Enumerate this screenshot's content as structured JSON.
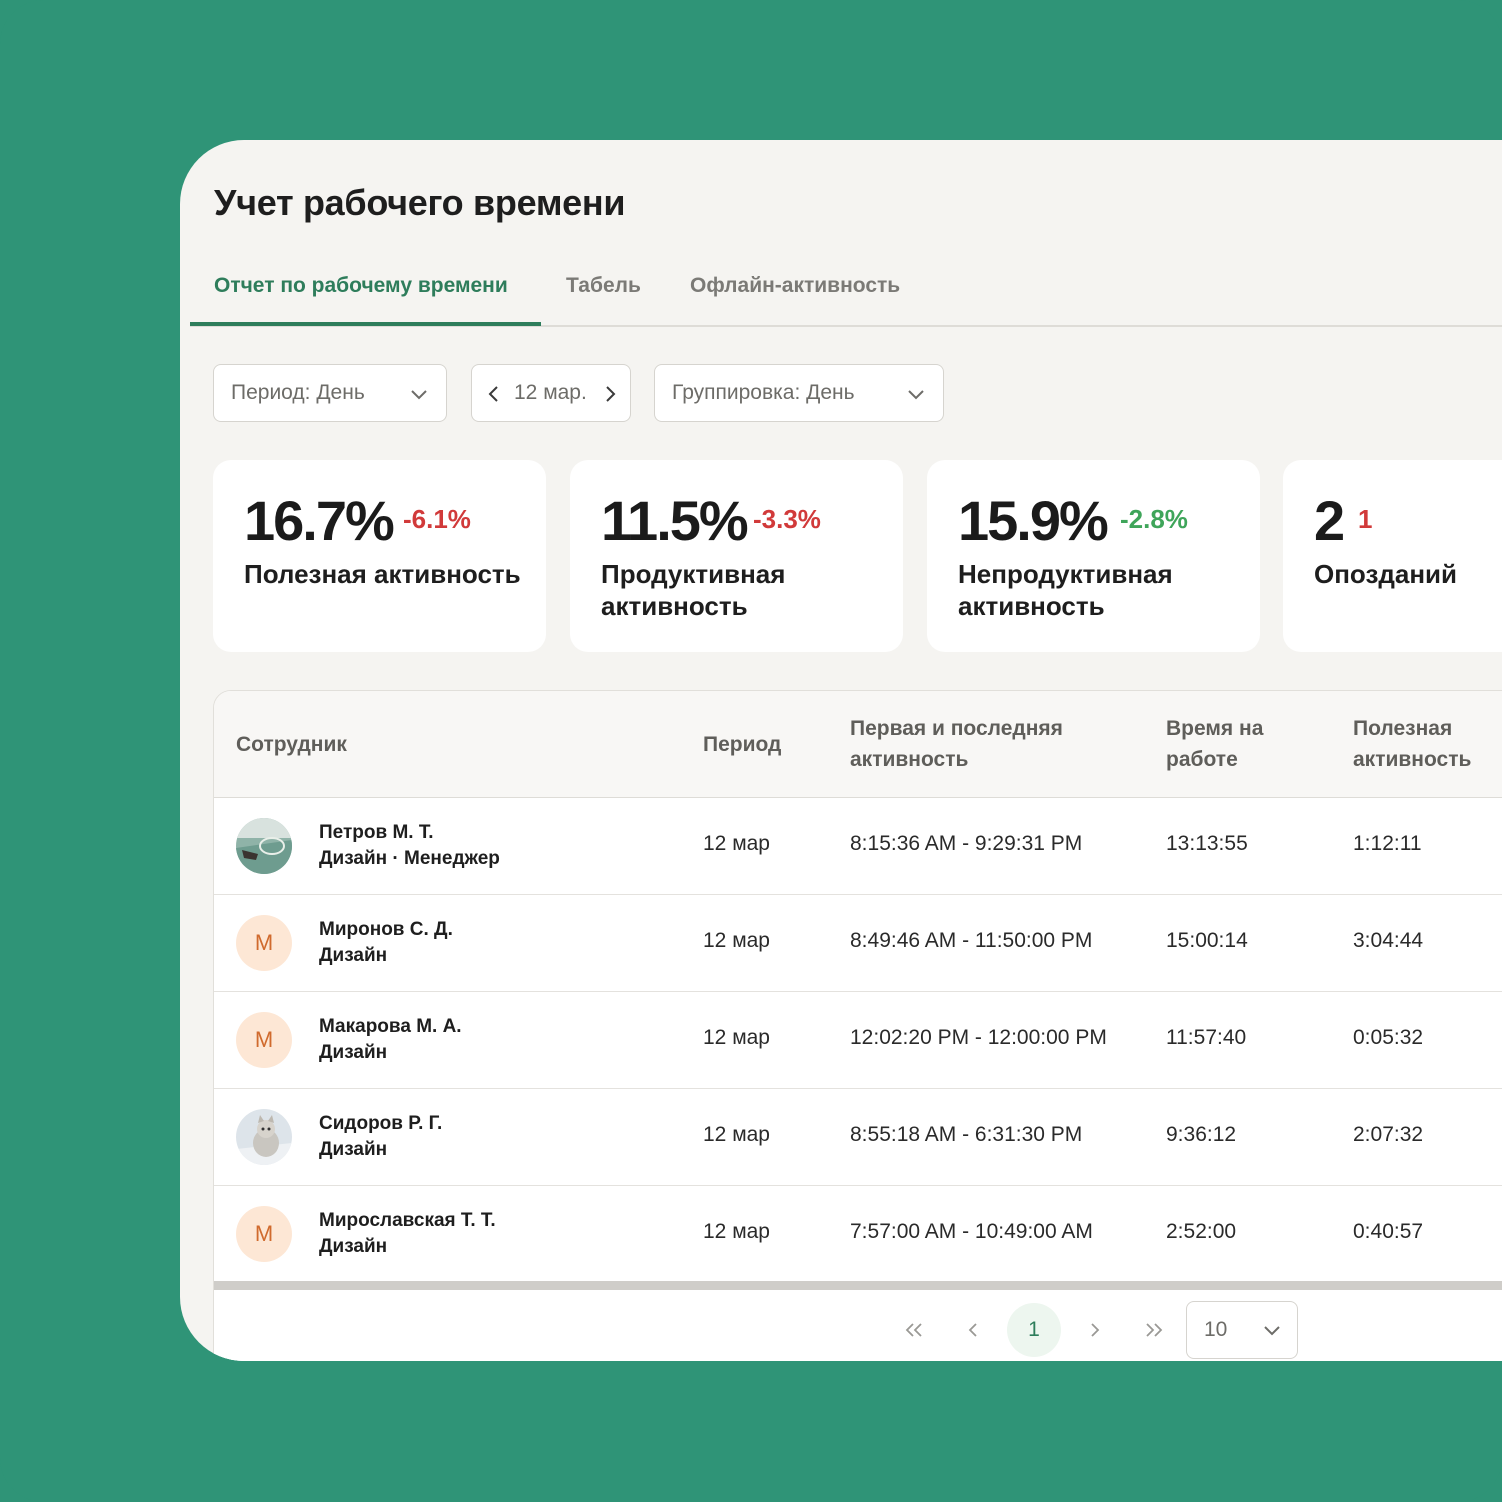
{
  "title": "Учет рабочего времени",
  "tabs": [
    {
      "label": "Отчет по рабочему времени"
    },
    {
      "label": "Табель"
    },
    {
      "label": "Офлайн-активность"
    }
  ],
  "filters": {
    "period": "Период: День",
    "date": "12 мар.",
    "grouping": "Группировка: День"
  },
  "stats": [
    {
      "value": "16.7%",
      "delta": "-6.1%",
      "delta_color": "#d13a3a",
      "label": "Полезная активность"
    },
    {
      "value": "11.5%",
      "delta": "-3.3%",
      "delta_color": "#d13a3a",
      "label": "Продуктивная активность"
    },
    {
      "value": "15.9%",
      "delta": "-2.8%",
      "delta_color": "#3fa55a",
      "label": "Непродуктивная активность"
    },
    {
      "value": "2",
      "delta": "1",
      "delta_color": "#d13a3a",
      "label": "Опозданий"
    }
  ],
  "table": {
    "headers": [
      "Сотрудник",
      "Период",
      "Первая и последняя активность",
      "Время на работе",
      "Полезная активность"
    ],
    "rows": [
      {
        "avatar": "photo",
        "name": "Петров М. Т.",
        "dept": "Дизайн · Менеджер",
        "period": "12 мар",
        "activity": "8:15:36 AM - 9:29:31 PM",
        "worktime": "13:13:55",
        "useful": "1:12:11"
      },
      {
        "avatar": "М",
        "name": "Миронов С. Д.",
        "dept": "Дизайн",
        "period": "12 мар",
        "activity": "8:49:46 AM - 11:50:00 PM",
        "worktime": "15:00:14",
        "useful": "3:04:44"
      },
      {
        "avatar": "М",
        "name": "Макарова М. А.",
        "dept": "Дизайн",
        "period": "12 мар",
        "activity": "12:02:20 PM - 12:00:00 PM",
        "worktime": "11:57:40",
        "useful": "0:05:32"
      },
      {
        "avatar": "photo",
        "name": "Сидоров Р. Г.",
        "dept": "Дизайн",
        "period": "12 мар",
        "activity": "8:55:18 AM - 6:31:30 PM",
        "worktime": "9:36:12",
        "useful": "2:07:32"
      },
      {
        "avatar": "М",
        "name": "Мирославская Т. Т.",
        "dept": "Дизайн",
        "period": "12 мар",
        "activity": "7:57:00 AM - 10:49:00 AM",
        "worktime": "2:52:00",
        "useful": "0:40:57"
      }
    ]
  },
  "pagination": {
    "current_page": "1",
    "page_size": "10",
    "icons": [
      "first-page-icon",
      "prev-page-icon",
      "next-page-icon",
      "last-page-icon",
      "chevron-down-icon"
    ]
  },
  "colors": {
    "background": "#2f9477",
    "accent": "#2e7d5b",
    "negative": "#d13a3a",
    "positive": "#3fa55a"
  }
}
